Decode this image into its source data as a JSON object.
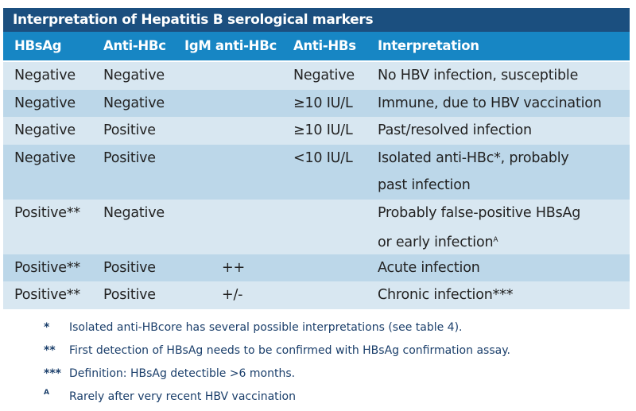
{
  "title": "Interpretation of Hepatitis B serological markers",
  "headers": [
    "HBsAg",
    "Anti-HBc",
    "IgM anti-HBc",
    "Anti-HBs",
    "Interpretation"
  ],
  "rows": [
    {
      "hbsag": "Negative",
      "antihbc": "Negative",
      "igm": "",
      "antihbs": "Negative",
      "interp": "No HBV infection, susceptible"
    },
    {
      "hbsag": "Negative",
      "antihbc": "Negative",
      "igm": "",
      "antihbs": "≥10 IU/L",
      "interp": "Immune, due to HBV vaccination"
    },
    {
      "hbsag": "Negative",
      "antihbc": "Positive",
      "igm": "",
      "antihbs": "≥10 IU/L",
      "interp": "Past/resolved infection"
    },
    {
      "hbsag": "Negative",
      "antihbc": "Positive",
      "igm": "",
      "antihbs": "<10 IU/L",
      "interp": "Isolated anti-HBc*, probably",
      "interp2": "past infection"
    },
    {
      "hbsag": "Positive**",
      "antihbc": "Negative",
      "igm": "",
      "antihbs": "",
      "interp": "Probably false-positive HBsAg",
      "interp2": "or early infection",
      "sup": "A"
    },
    {
      "hbsag": "Positive**",
      "antihbc": "Positive",
      "igm": "++",
      "antihbs": "",
      "interp": "Acute infection"
    },
    {
      "hbsag": "Positive**",
      "antihbc": "Positive",
      "igm": "+/-",
      "antihbs": "",
      "interp": "Chronic infection***"
    }
  ],
  "footnotes": [
    {
      "symbol": "*",
      "text": "Isolated anti-HBcore has several possible interpretations (see table 4)."
    },
    {
      "symbol": "**",
      "text": "First detection of HBsAg needs to be confirmed with HBsAg confirmation assay."
    },
    {
      "symbol": "***",
      "text": "Definition: HBsAg detectible >6 months."
    },
    {
      "symbol": "A",
      "text": "Rarely after very recent HBV vaccination"
    }
  ],
  "colors": {
    "title_bg": "#1b4f7f",
    "header_bg": "#1786c4",
    "row_light": "#d8e7f1",
    "row_dark": "#bcd7e9",
    "footnote_text": "#1b3f6b"
  }
}
